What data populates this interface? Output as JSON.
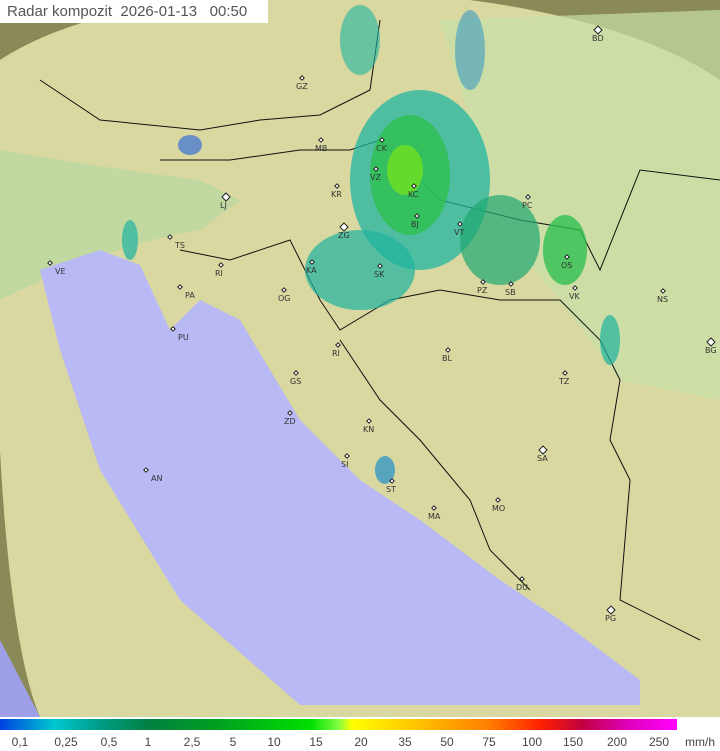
{
  "title": "Radar kompozit",
  "date": "2026-01-13",
  "time": "00:50",
  "legend": {
    "unit": "mm/h",
    "ticks": [
      "0,1",
      "0,25",
      "0,5",
      "1",
      "2,5",
      "5",
      "10",
      "15",
      "20",
      "35",
      "50",
      "75",
      "100",
      "150",
      "200",
      "250"
    ],
    "colors": [
      "#0040e0",
      "#00c8d0",
      "#00a090",
      "#008040",
      "#00a020",
      "#00e000",
      "#80ff40",
      "#ffff00",
      "#ffc000",
      "#ff8000",
      "#ff2000",
      "#c00040",
      "#e000c0",
      "#ff00ff"
    ]
  },
  "cities": [
    {
      "code": "BD",
      "major": true
    },
    {
      "code": "GZ"
    },
    {
      "code": "MB"
    },
    {
      "code": "CK"
    },
    {
      "code": "VZ"
    },
    {
      "code": "KR"
    },
    {
      "code": "KC"
    },
    {
      "code": "LJ",
      "major": true
    },
    {
      "code": "PC"
    },
    {
      "code": "ZG",
      "major": true
    },
    {
      "code": "BJ"
    },
    {
      "code": "VT"
    },
    {
      "code": "TS"
    },
    {
      "code": "OS"
    },
    {
      "code": "VE"
    },
    {
      "code": "KA"
    },
    {
      "code": "SK"
    },
    {
      "code": "RI"
    },
    {
      "code": "PA"
    },
    {
      "code": "PZ"
    },
    {
      "code": "SB"
    },
    {
      "code": "VK"
    },
    {
      "code": "NS"
    },
    {
      "code": "OG"
    },
    {
      "code": "PU"
    },
    {
      "code": "RI"
    },
    {
      "code": "BL"
    },
    {
      "code": "BG",
      "major": true
    },
    {
      "code": "GS"
    },
    {
      "code": "TZ"
    },
    {
      "code": "ZD"
    },
    {
      "code": "KN"
    },
    {
      "code": "SA",
      "major": true
    },
    {
      "code": "SI"
    },
    {
      "code": "AN"
    },
    {
      "code": "ST"
    },
    {
      "code": "MO"
    },
    {
      "code": "MA"
    },
    {
      "code": "DU"
    },
    {
      "code": "PG",
      "major": true
    }
  ]
}
